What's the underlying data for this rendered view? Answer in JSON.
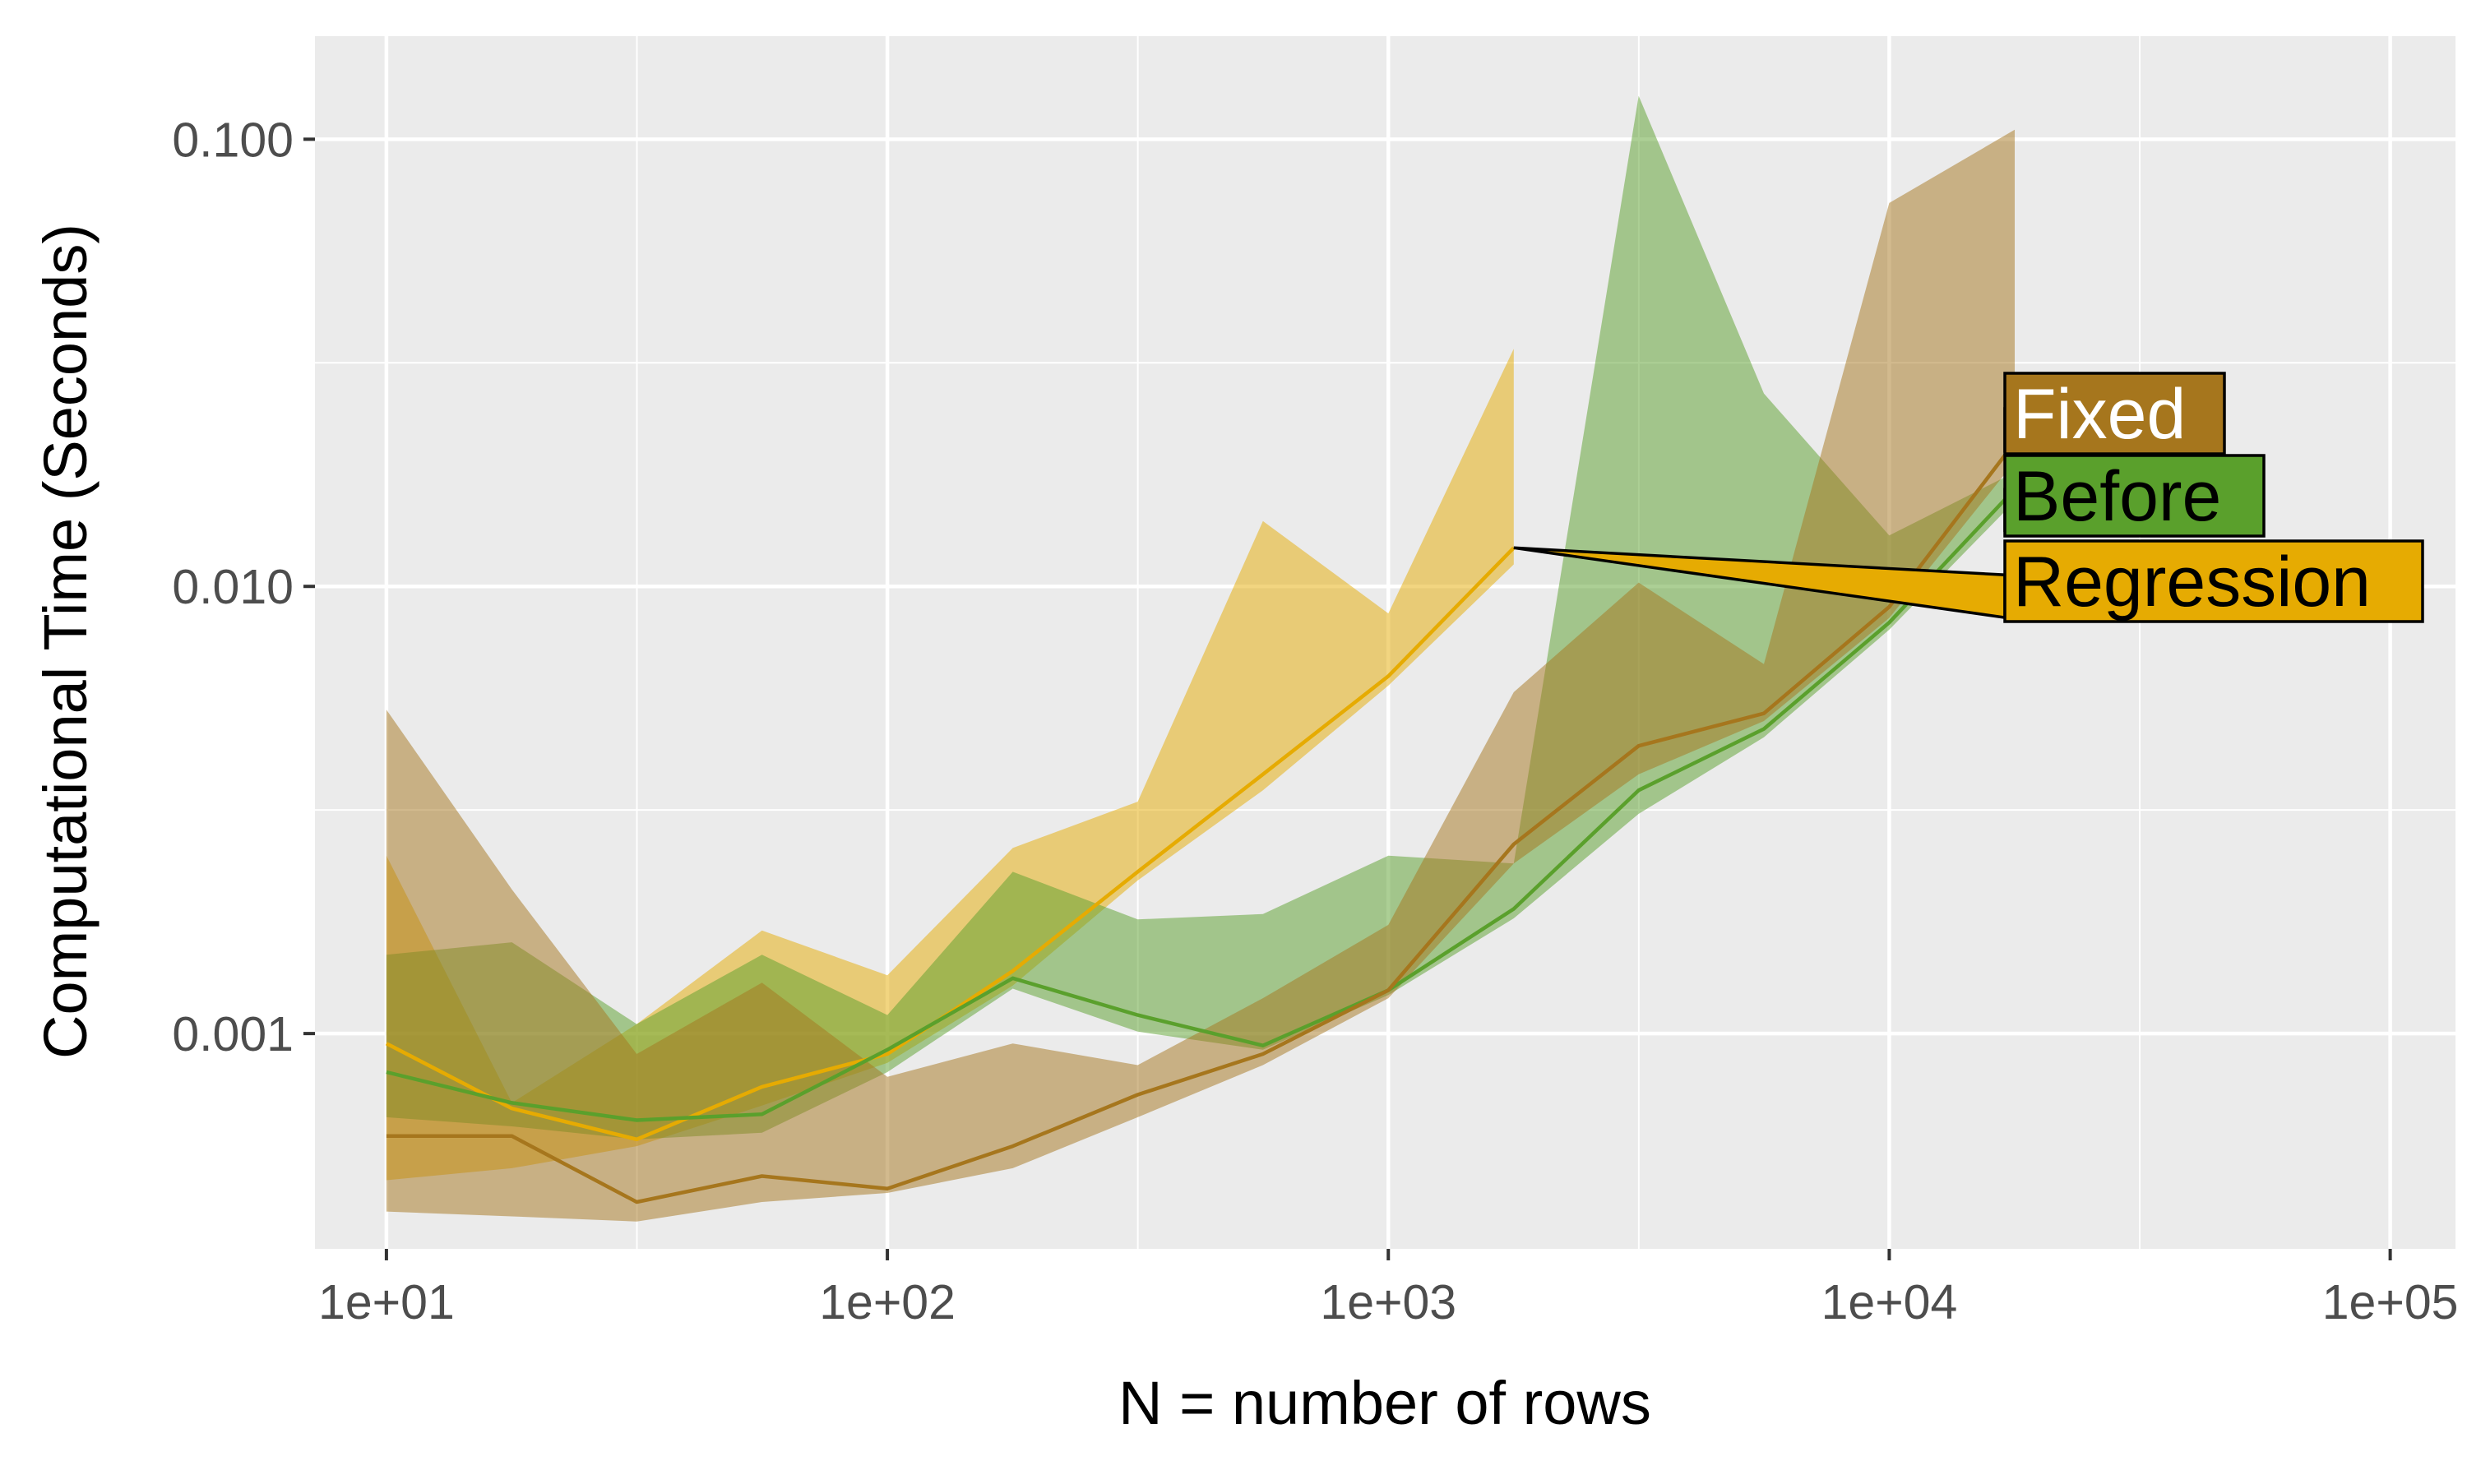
{
  "chart_data": {
    "type": "area",
    "title": "",
    "xlabel": "N = number of rows",
    "ylabel": "Computational Time (Seconds)",
    "x_scale": "log10",
    "y_scale": "log10",
    "xlim": [
      7.2,
      135000
    ],
    "ylim": [
      0.00033,
      0.17
    ],
    "x_ticks": [
      {
        "value": 10,
        "label": "1e+01"
      },
      {
        "value": 100,
        "label": "1e+02"
      },
      {
        "value": 1000,
        "label": "1e+03"
      },
      {
        "value": 10000,
        "label": "1e+04"
      },
      {
        "value": 100000,
        "label": "1e+05"
      }
    ],
    "y_ticks": [
      {
        "value": 0.001,
        "label": "0.001"
      },
      {
        "value": 0.01,
        "label": "0.010"
      },
      {
        "value": 0.1,
        "label": "0.100"
      }
    ],
    "grid": true,
    "background": "#ebebeb",
    "legend": "direct labels at right end of each series",
    "series": [
      {
        "name": "Regression",
        "color": "#e6ab02",
        "label_text_color": "#000000",
        "x": [
          10,
          17.8,
          31.6,
          56.2,
          100,
          178,
          316,
          562,
          1000,
          1780
        ],
        "median": [
          0.00095,
          0.00068,
          0.00058,
          0.00076,
          0.0009,
          0.00138,
          0.0023,
          0.0038,
          0.0063,
          0.0122
        ],
        "lower": [
          0.00047,
          0.0005,
          0.00056,
          0.00069,
          0.00086,
          0.00128,
          0.0022,
          0.0035,
          0.006,
          0.0112
        ],
        "upper": [
          0.0025,
          0.0007,
          0.00105,
          0.0017,
          0.00135,
          0.0026,
          0.0033,
          0.014,
          0.0087,
          0.034
        ]
      },
      {
        "name": "Before",
        "color": "#5aa02c",
        "label_text_color": "#000000",
        "x": [
          10,
          17.8,
          31.6,
          56.2,
          100,
          178,
          316,
          562,
          1000,
          1780,
          3160,
          5620,
          10000,
          17800
        ],
        "median": [
          0.00082,
          0.0007,
          0.00064,
          0.00066,
          0.00092,
          0.00133,
          0.0011,
          0.00094,
          0.00125,
          0.0019,
          0.0035,
          0.0048,
          0.0083,
          0.0165
        ],
        "lower": [
          0.00065,
          0.00062,
          0.00058,
          0.0006,
          0.00082,
          0.00126,
          0.00101,
          0.00092,
          0.00122,
          0.00181,
          0.0031,
          0.0046,
          0.008,
          0.0155
        ],
        "upper": [
          0.0015,
          0.0016,
          0.00105,
          0.0015,
          0.0011,
          0.0023,
          0.0018,
          0.00185,
          0.0025,
          0.0024,
          0.125,
          0.027,
          0.013,
          0.018
        ]
      },
      {
        "name": "Fixed",
        "color": "#a6761d",
        "label_text_color": "#ffffff",
        "x": [
          10,
          17.8,
          31.6,
          56.2,
          100,
          178,
          316,
          562,
          1000,
          1780,
          3160,
          5620,
          10000,
          17800
        ],
        "median": [
          0.00059,
          0.00059,
          0.00042,
          0.00048,
          0.00045,
          0.00056,
          0.00073,
          0.0009,
          0.00125,
          0.00265,
          0.0044,
          0.0052,
          0.009,
          0.021
        ],
        "lower": [
          0.0004,
          0.00039,
          0.00038,
          0.00042,
          0.00044,
          0.0005,
          0.00065,
          0.00085,
          0.0012,
          0.0024,
          0.0038,
          0.005,
          0.0085,
          0.019
        ],
        "upper": [
          0.0053,
          0.0021,
          0.0009,
          0.0013,
          0.0008,
          0.00095,
          0.00085,
          0.0012,
          0.00175,
          0.0058,
          0.0102,
          0.0067,
          0.072,
          0.105
        ]
      }
    ]
  }
}
